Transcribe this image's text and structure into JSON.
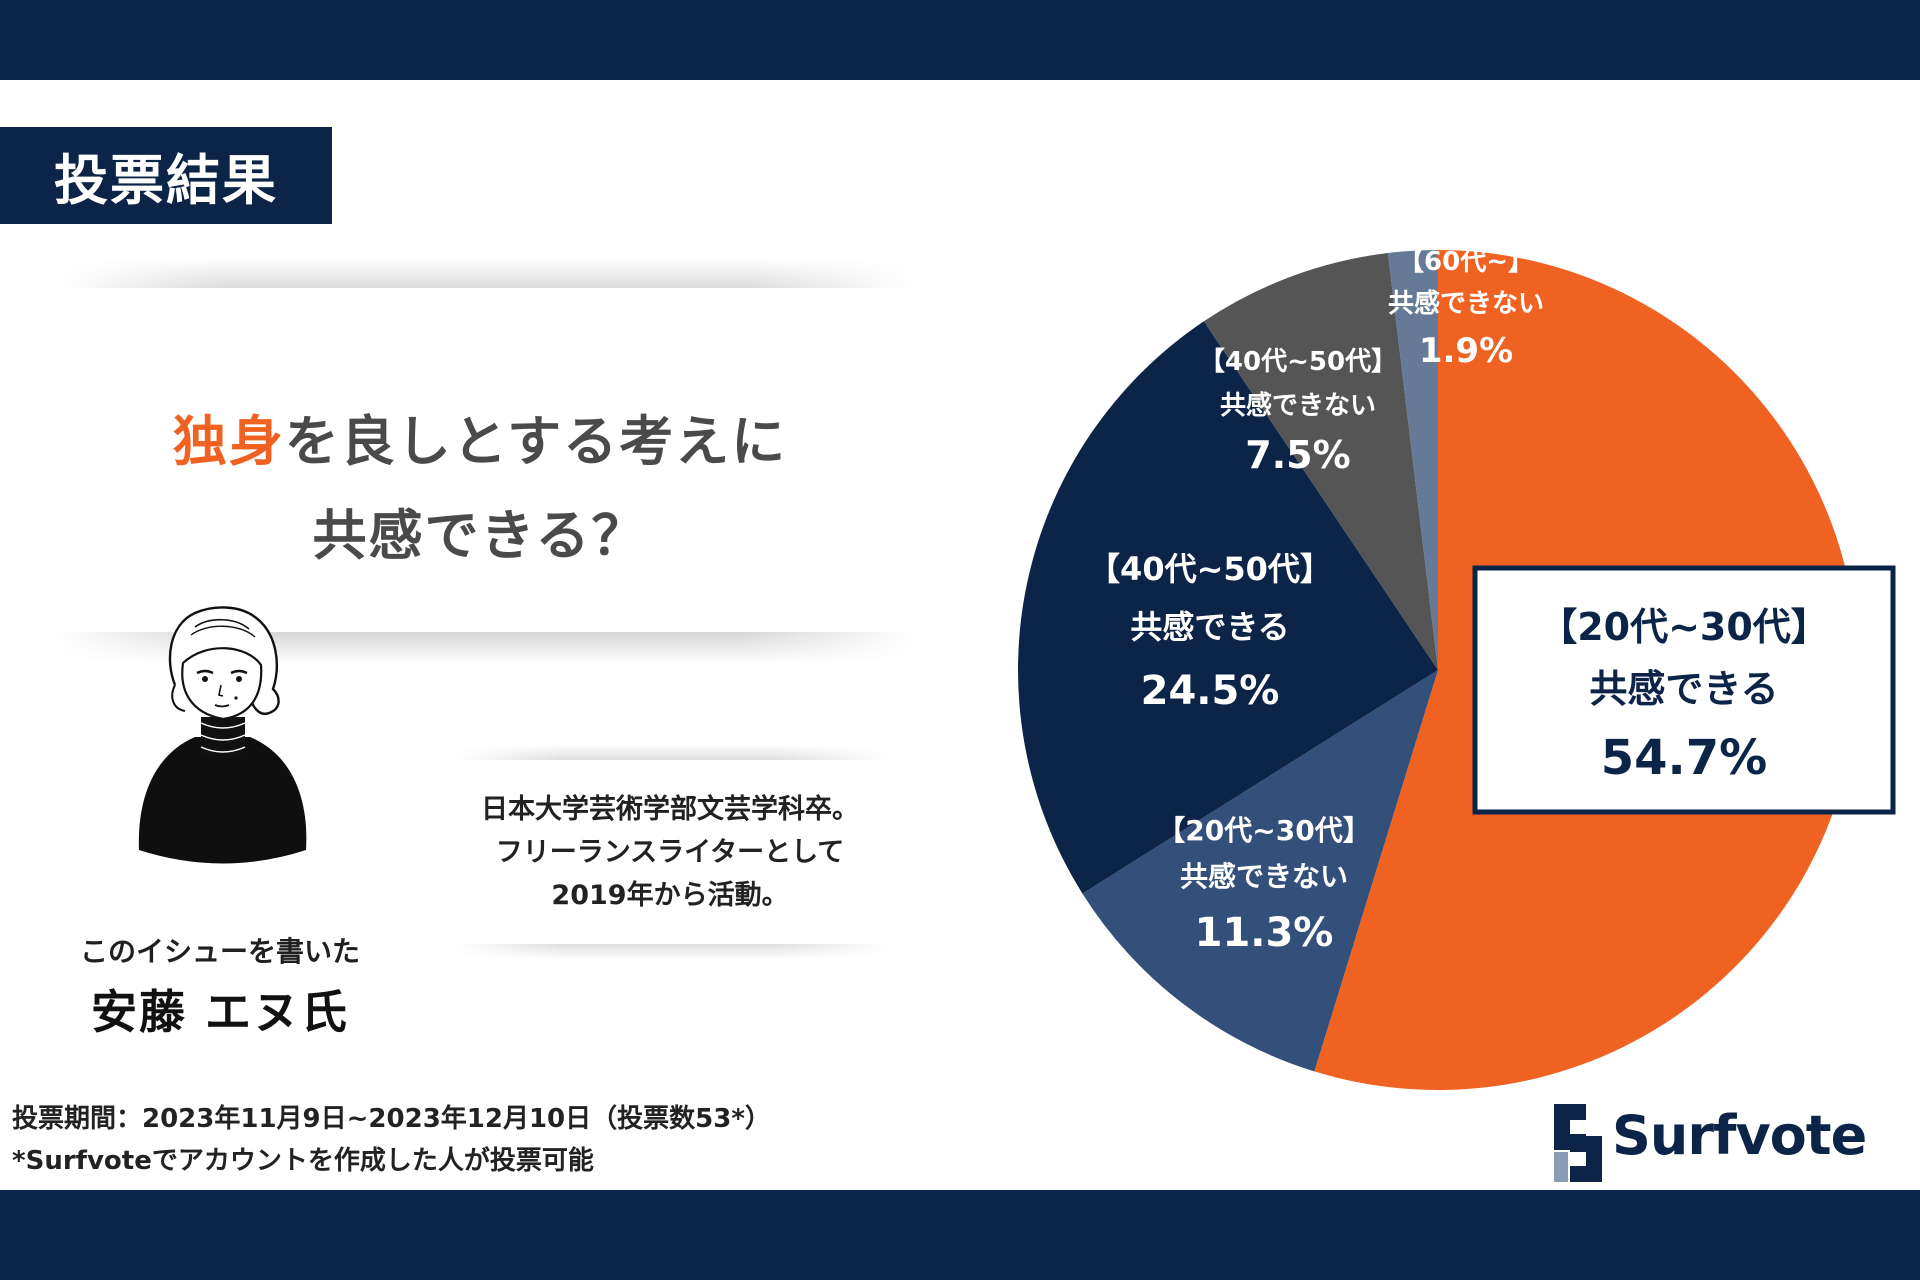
{
  "badge": "投票結果",
  "question": {
    "line1_accent": "独身",
    "line1_rest": "を良しとする考えに",
    "line2": "共感できる？"
  },
  "author": {
    "caption": "このイシューを書いた",
    "name": "安藤 エヌ氏",
    "bio": [
      "日本大学芸術学部文芸学科卒。",
      "フリーランスライターとして",
      "2019年から活動。"
    ]
  },
  "footnote": {
    "period": "投票期間：2023年11月9日~2023年12月10日（投票数53*）",
    "note": "*Surfvoteでアカウントを作成した人が投票可能"
  },
  "logo": {
    "text": "Surfvote"
  },
  "chart_data": {
    "type": "pie",
    "start_angle": "12 o'clock",
    "direction": "clockwise",
    "slices": [
      {
        "label": "【20代~30代】",
        "sub": "共感できる",
        "value": 54.7,
        "value_label": "54.7%",
        "color": "#ef6222",
        "text_color": "#0d2449",
        "boxed": true
      },
      {
        "label": "【20代~30代】",
        "sub": "共感できない",
        "value": 11.3,
        "value_label": "11.3%",
        "color": "#33507a",
        "text_color": "#ffffff"
      },
      {
        "label": "【40代~50代】",
        "sub": "共感できる",
        "value": 24.5,
        "value_label": "24.5%",
        "color": "#0d2449",
        "text_color": "#ffffff"
      },
      {
        "label": "【40代~50代】",
        "sub": "共感できない",
        "value": 7.5,
        "value_label": "7.5%",
        "color": "#555555",
        "text_color": "#ffffff"
      },
      {
        "label": "【60代~】",
        "sub": "共感できない",
        "value": 1.9,
        "value_label": "1.9%",
        "color": "#667a97",
        "text_color": "#ffffff"
      }
    ]
  }
}
